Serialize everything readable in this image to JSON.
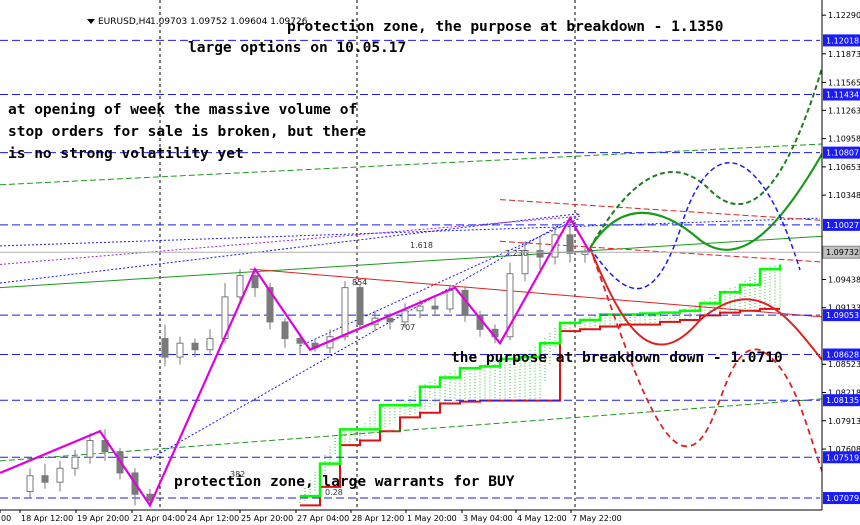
{
  "chart_data": {
    "type": "candlestick",
    "title": "EURUSD,H4  1.09703 1.09752 1.09604 1.09726",
    "symbol_label": "EURUSD,H4",
    "ohlc_label": "1.09703 1.09752 1.09604 1.09726",
    "ylim": [
      1.0695,
      1.124
    ],
    "current_price": "1.09732",
    "y_ticks": [
      "1.12290",
      "1.11873",
      "1.11565",
      "1.11263",
      "1.10958",
      "1.10653",
      "1.10348",
      "1.09438",
      "1.09133",
      "1.08523",
      "1.08218",
      "1.07913",
      "1.07608"
    ],
    "level_lines": [
      "1.12018",
      "1.11434",
      "1.10807",
      "1.10027",
      "1.09053",
      "1.08628",
      "1.08135",
      "1.07519",
      "1.07079"
    ],
    "x_ticks": [
      "00",
      "18 Apr 12:00",
      "19 Apr 20:00",
      "21 Apr 04:00",
      "24 Apr 12:00",
      "25 Apr 20:00",
      "27 Apr 04:00",
      "28 Apr 12:00",
      "1 May 20:00",
      "3 May 04:00",
      "4 May 12:00",
      "7 May 22:00"
    ],
    "ichimoku_cloud_x": [
      300,
      320,
      340,
      360,
      380,
      400,
      420,
      440,
      460,
      480,
      500,
      520,
      540,
      560,
      580,
      600,
      620,
      640,
      660,
      680,
      700,
      720,
      740,
      760,
      780
    ],
    "ichimoku_upper": [
      1.071,
      1.0745,
      1.0782,
      1.0782,
      1.0808,
      1.0808,
      1.0828,
      1.0838,
      1.0848,
      1.085,
      1.0858,
      1.086,
      1.0875,
      1.0897,
      1.09,
      1.0906,
      1.0906,
      1.0907,
      1.0908,
      1.091,
      1.0918,
      1.093,
      1.0938,
      1.0955,
      1.096
    ],
    "ichimoku_lower": [
      1.07,
      1.072,
      1.0765,
      1.077,
      1.078,
      1.0795,
      1.08,
      1.081,
      1.0812,
      1.0813,
      1.0813,
      1.0813,
      1.0813,
      1.0888,
      1.089,
      1.0893,
      1.0895,
      1.0895,
      1.0898,
      1.09,
      1.0905,
      1.0908,
      1.091,
      1.0912,
      1.0912
    ],
    "zigzag": [
      [
        0,
        1.0735
      ],
      [
        100,
        1.078
      ],
      [
        150,
        1.07
      ],
      [
        255,
        1.0955
      ],
      [
        310,
        1.0868
      ],
      [
        455,
        1.0935
      ],
      [
        500,
        1.0875
      ],
      [
        570,
        1.101
      ],
      [
        590,
        1.0973
      ]
    ],
    "candles": [
      [
        30,
        1.0715,
        1.0732,
        1.0708,
        1.074
      ],
      [
        45,
        1.0732,
        1.0725,
        1.0718,
        1.0745
      ],
      [
        60,
        1.0725,
        1.074,
        1.0715,
        1.0748
      ],
      [
        75,
        1.074,
        1.0752,
        1.0732,
        1.076
      ],
      [
        90,
        1.0752,
        1.077,
        1.0745,
        1.0778
      ],
      [
        105,
        1.077,
        1.0758,
        1.0748,
        1.0782
      ],
      [
        120,
        1.0758,
        1.0735,
        1.0728,
        1.0762
      ],
      [
        135,
        1.0735,
        1.0712,
        1.07,
        1.074
      ],
      [
        150,
        1.0712,
        1.0705,
        1.0698,
        1.0718
      ],
      [
        165,
        1.088,
        1.086,
        1.085,
        1.0895
      ],
      [
        180,
        1.086,
        1.0875,
        1.0852,
        1.0882
      ],
      [
        195,
        1.0875,
        1.0868,
        1.086,
        1.088
      ],
      [
        210,
        1.0868,
        1.088,
        1.0862,
        1.089
      ],
      [
        225,
        1.088,
        1.0925,
        1.0875,
        1.094
      ],
      [
        240,
        1.0925,
        1.0948,
        1.0918,
        1.0955
      ],
      [
        255,
        1.0948,
        1.0935,
        1.0925,
        1.0952
      ],
      [
        270,
        1.0935,
        1.0898,
        1.089,
        1.094
      ],
      [
        285,
        1.0898,
        1.088,
        1.087,
        1.0902
      ],
      [
        300,
        1.088,
        1.0875,
        1.0862,
        1.0885
      ],
      [
        315,
        1.0875,
        1.087,
        1.0866,
        1.088
      ],
      [
        330,
        1.087,
        1.0882,
        1.0864,
        1.089
      ],
      [
        345,
        1.0882,
        1.0935,
        1.0878,
        1.0942
      ],
      [
        360,
        1.0935,
        1.0895,
        1.089,
        1.0938
      ],
      [
        375,
        1.0895,
        1.0902,
        1.0888,
        1.091
      ],
      [
        390,
        1.0902,
        1.0898,
        1.089,
        1.0908
      ],
      [
        405,
        1.0898,
        1.091,
        1.0892,
        1.0918
      ],
      [
        420,
        1.091,
        1.0915,
        1.0902,
        1.0922
      ],
      [
        435,
        1.0915,
        1.0912,
        1.0905,
        1.0925
      ],
      [
        450,
        1.0912,
        1.0932,
        1.0908,
        1.0938
      ],
      [
        465,
        1.0932,
        1.0905,
        1.0898,
        1.0935
      ],
      [
        480,
        1.0905,
        1.089,
        1.0882,
        1.091
      ],
      [
        495,
        1.089,
        1.0882,
        1.0875,
        1.0895
      ],
      [
        510,
        1.0882,
        1.095,
        1.0878,
        1.0962
      ],
      [
        525,
        1.095,
        1.0975,
        1.0942,
        1.0985
      ],
      [
        540,
        1.0975,
        1.0968,
        1.0955,
        1.099
      ],
      [
        555,
        1.0968,
        1.0992,
        1.096,
        1.1
      ],
      [
        570,
        1.0992,
        1.0972,
        1.0962,
        1.101
      ],
      [
        585,
        1.0972,
        1.0973,
        1.0962,
        1.0978
      ]
    ]
  },
  "annotations": {
    "top_zone": "protection zone, the purpose at breakdown - 1.1350",
    "large_options": "large options on 10.05.17",
    "opening_line1": "at opening of week the massive volume of",
    "opening_line2": "stop orders for sale is broken, but there",
    "opening_line3": "is no strong volatility yet",
    "breakdown_down": "the purpose at breakdown down - 1.0710",
    "bottom_zone": "protection zone, large warrants for BUY"
  },
  "fib_labels": [
    "1.618",
    "2.236",
    "854",
    "707",
    "382",
    "0.28"
  ],
  "colors": {
    "level_line": "#1a1aff",
    "price_tag": "#1a1aff",
    "current_tag": "#c0c0c0",
    "candle": "#7a7a7a",
    "zigzag": "#e000e0",
    "green_line": "#1a9a1a",
    "red_line": "#dd2222",
    "cloud_upper": "#00ff00",
    "cloud_lower": "#dd1111",
    "cloud_hatch": "#00aa00",
    "projection_green_dark": "#1c7f1c",
    "projection_blue": "#1a1aff"
  }
}
